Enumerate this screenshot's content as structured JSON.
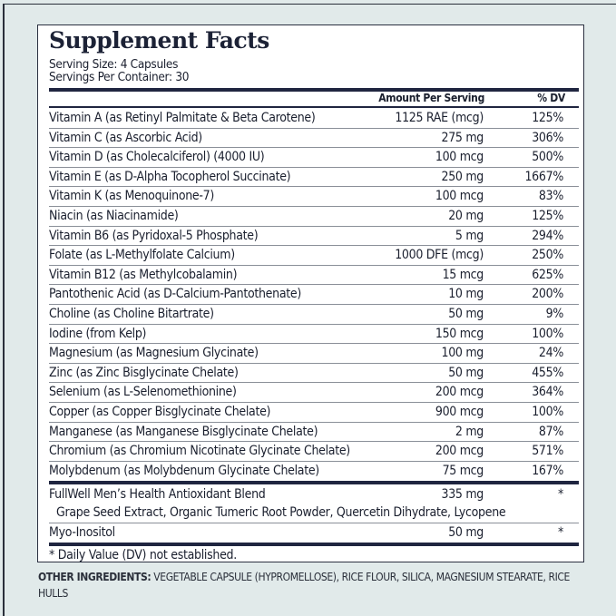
{
  "title": "Supplement Facts",
  "serving_size": "Serving Size: 4 Capsules",
  "servings_per_container": "Servings Per Container: 30",
  "headers": {
    "amount": "Amount Per Serving",
    "dv": "% DV"
  },
  "nutrients": [
    {
      "name": "Vitamin A (as Retinyl Palmitate & Beta Carotene)",
      "amount": "1125 RAE (mcg)",
      "dv": "125%"
    },
    {
      "name": "Vitamin C (as Ascorbic Acid)",
      "amount": "275 mg",
      "dv": "306%"
    },
    {
      "name": "Vitamin D (as Cholecalciferol) (4000 IU)",
      "amount": "100 mcg",
      "dv": "500%"
    },
    {
      "name": "Vitamin E (as D-Alpha Tocopherol Succinate)",
      "amount": "250 mg",
      "dv": "1667%"
    },
    {
      "name": "Vitamin K (as Menoquinone-7)",
      "amount": "100 mcg",
      "dv": "83%"
    },
    {
      "name": "Niacin (as Niacinamide)",
      "amount": "20 mg",
      "dv": "125%"
    },
    {
      "name": "Vitamin B6 (as Pyridoxal-5 Phosphate)",
      "amount": "5 mg",
      "dv": "294%"
    },
    {
      "name": "Folate (as L-Methylfolate Calcium)",
      "amount": "1000 DFE (mcg)",
      "dv": "250%"
    },
    {
      "name": "Vitamin B12 (as Methylcobalamin)",
      "amount": "15 mcg",
      "dv": "625%"
    },
    {
      "name": "Pantothenic Acid (as D-Calcium-Pantothenate)",
      "amount": "10 mg",
      "dv": "200%"
    },
    {
      "name": "Choline (as Choline Bitartrate)",
      "amount": "50 mg",
      "dv": "9%"
    },
    {
      "name": "Iodine (from Kelp)",
      "amount": "150 mcg",
      "dv": "100%"
    },
    {
      "name": "Magnesium (as Magnesium Glycinate)",
      "amount": "100 mg",
      "dv": "24%"
    },
    {
      "name": "Zinc (as Zinc Bisglycinate Chelate)",
      "amount": "50 mg",
      "dv": "455%"
    },
    {
      "name": "Selenium (as L-Selenomethionine)",
      "amount": "200 mcg",
      "dv": "364%"
    },
    {
      "name": "Copper (as Copper Bisglycinate Chelate)",
      "amount": "900 mcg",
      "dv": "100%"
    },
    {
      "name": "Manganese (as Manganese Bisglycinate Chelate)",
      "amount": "2 mg",
      "dv": "87%"
    },
    {
      "name": "Chromium (as Chromium Nicotinate Glycinate Chelate)",
      "amount": "200 mcg",
      "dv": "571%"
    },
    {
      "name": "Molybdenum (as Molybdenum Glycinate Chelate)",
      "amount": "75 mcg",
      "dv": "167%"
    }
  ],
  "blend": {
    "name": "FullWell Men’s Health Antioxidant Blend",
    "amount": "335 mg",
    "dv": "*",
    "ingredients": "Grape Seed Extract, Organic Tumeric Root Powder, Quercetin Dihydrate, Lycopene"
  },
  "myo": {
    "name": "Myo-Inositol",
    "amount": "50 mg",
    "dv": "*"
  },
  "footnote": "* Daily Value (DV) not established.",
  "other_ingredients": {
    "label": "OTHER INGREDIENTS:",
    "text": " VEGETABLE CAPSULE (HYPROMELLOSE), RICE FLOUR, SILICA, MAGNESIUM STEARATE, RICE HULLS"
  }
}
